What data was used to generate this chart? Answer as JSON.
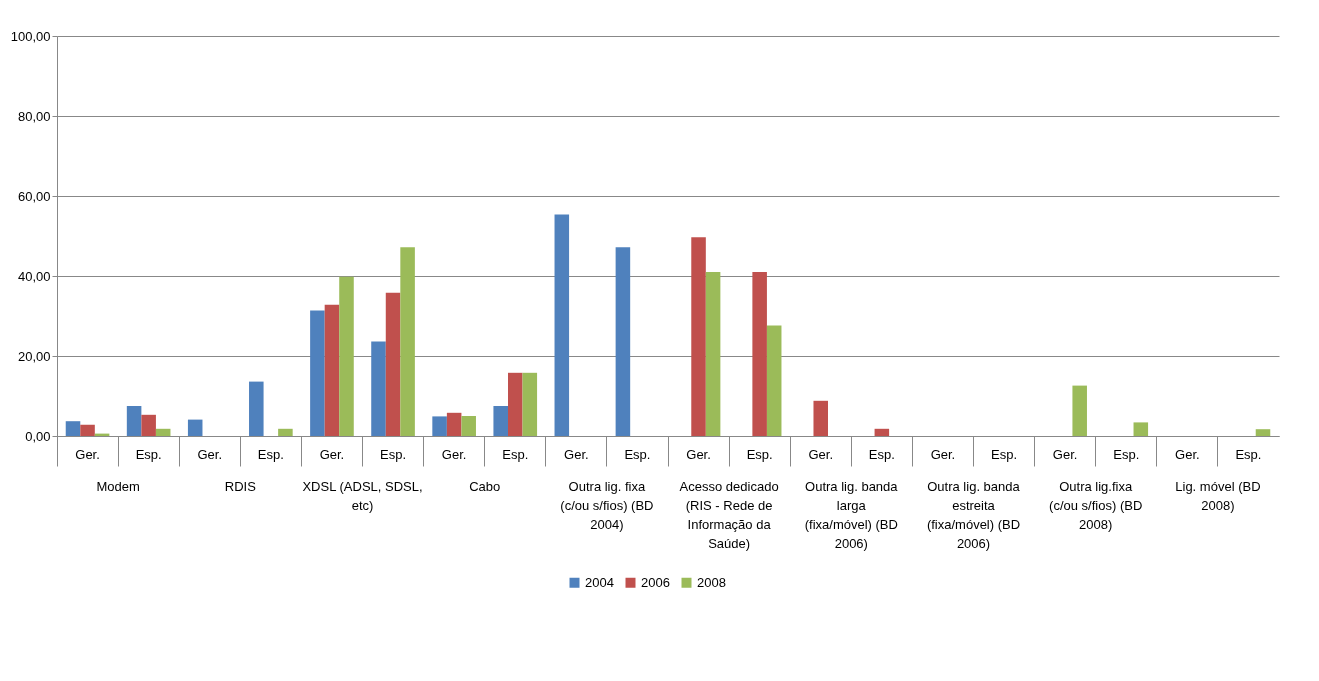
{
  "chart_data": {
    "type": "bar",
    "categories": [
      "Ger.",
      "Esp.",
      "Ger.",
      "Esp.",
      "Ger.",
      "Esp.",
      "Ger.",
      "Esp.",
      "Ger.",
      "Esp.",
      "Ger.",
      "Esp.",
      "Ger.",
      "Esp.",
      "Ger.",
      "Esp.",
      "Ger.",
      "Esp.",
      "Ger.",
      "Esp."
    ],
    "series": [
      {
        "name": "2004",
        "color": "#4f81bd",
        "values": [
          3.7,
          7.5,
          4.1,
          13.6,
          31.4,
          23.6,
          4.9,
          7.5,
          55.4,
          47.2,
          null,
          null,
          null,
          null,
          null,
          null,
          null,
          null,
          null,
          null
        ]
      },
      {
        "name": "2006",
        "color": "#c0504d",
        "values": [
          2.8,
          5.3,
          null,
          null,
          32.8,
          35.8,
          5.8,
          15.8,
          null,
          null,
          49.7,
          41.0,
          8.8,
          1.8,
          null,
          null,
          null,
          null,
          null,
          null
        ]
      },
      {
        "name": "2008",
        "color": "#9bbb59",
        "values": [
          0.6,
          1.8,
          null,
          1.8,
          39.8,
          47.2,
          5.0,
          15.8,
          null,
          null,
          41.0,
          27.6,
          null,
          null,
          null,
          null,
          12.6,
          3.4,
          null,
          1.7
        ]
      }
    ],
    "annotations": [
      "Modem",
      "RDIS",
      "XDSL (ADSL, SDSL, etc)",
      "Cabo",
      "Outra lig. fixa (c/ou s/fios) (BD 2004)",
      "Acesso dedicado (RIS - Rede de Informação da Saúde)",
      "Outra lig. banda larga (fixa/móvel) (BD 2006)",
      "Outra lig. banda estreita (fixa/móvel) (BD 2006)",
      "Outra lig.fixa (c/ou s/fios) (BD 2008)",
      "Lig. móvel (BD 2008)"
    ],
    "ylim": [
      0,
      100
    ],
    "yticks": [
      {
        "value": 0,
        "label": "0,00"
      },
      {
        "value": 20,
        "label": "20,00"
      },
      {
        "value": 40,
        "label": "40,00"
      },
      {
        "value": 60,
        "label": "60,00"
      },
      {
        "value": 80,
        "label": "80,00"
      },
      {
        "value": 100,
        "label": "100,00"
      }
    ],
    "grid": "y",
    "legend": "bottom"
  }
}
